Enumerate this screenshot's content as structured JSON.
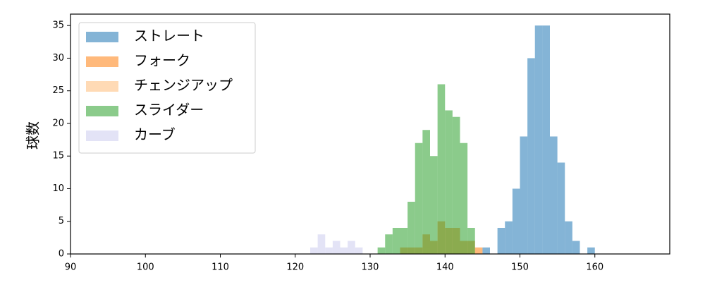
{
  "chart_data": {
    "type": "histogram",
    "ylabel": "球数",
    "xlim": [
      90,
      170
    ],
    "ylim": [
      0,
      36.75
    ],
    "xticks": [
      90,
      100,
      110,
      120,
      130,
      140,
      150,
      160
    ],
    "yticks": [
      0,
      5,
      10,
      15,
      20,
      25,
      30,
      35
    ],
    "legend": "upper left",
    "series": [
      {
        "name": "ストレート",
        "color": "#1f77b4",
        "bins": [
          145,
          146,
          147,
          148,
          149,
          150,
          151,
          152,
          153,
          154,
          155,
          156,
          157,
          158,
          159,
          160
        ],
        "values": [
          1,
          0,
          4,
          5,
          10,
          18,
          30,
          35,
          35,
          18,
          14,
          5,
          2,
          0,
          1
        ]
      },
      {
        "name": "フォーク",
        "color": "#ff7f0e",
        "bins": [
          134,
          135,
          136,
          137,
          138,
          139,
          140,
          141,
          142,
          143,
          144,
          145
        ],
        "values": [
          1,
          1,
          1,
          3,
          2,
          5,
          4,
          4,
          2,
          2,
          1
        ]
      },
      {
        "name": "チェンジアップ",
        "color": "#ffbb78",
        "bins": [
          137,
          138
        ],
        "values": [
          1
        ]
      },
      {
        "name": "スライダー",
        "color": "#2ca02c",
        "bins": [
          131,
          132,
          133,
          134,
          135,
          136,
          137,
          138,
          139,
          140,
          141,
          142,
          143,
          144
        ],
        "values": [
          1,
          3,
          4,
          4,
          8,
          17,
          19,
          15,
          26,
          22,
          21,
          17,
          4
        ]
      },
      {
        "name": "カーブ",
        "color": "#ccccee",
        "bins": [
          122,
          123,
          124,
          125,
          126,
          127,
          128,
          129
        ],
        "values": [
          1,
          3,
          1,
          2,
          1,
          2,
          1
        ]
      }
    ]
  }
}
